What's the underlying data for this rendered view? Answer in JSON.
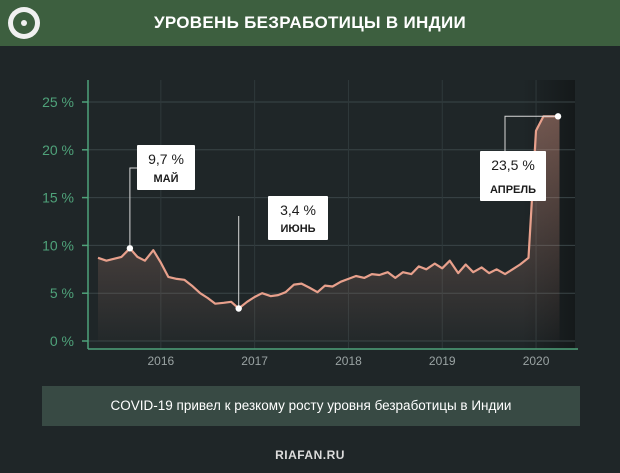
{
  "header": {
    "title": "УРОВЕНЬ БЕЗРАБОТИЦЫ В ИНДИИ"
  },
  "caption": "COVID-19 привел к резкому росту уровня безработицы в Индии",
  "footer": "RIAFAN.RU",
  "colors": {
    "header_bg": "#3d5f3f",
    "background": "#1f2628",
    "axis": "#4fa27a",
    "line": "#e8a08c",
    "caption_bg": "#384a44"
  },
  "chart_data": {
    "type": "line",
    "title": "УРОВЕНЬ БЕЗРАБОТИЦЫ В ИНДИИ",
    "ylim": [
      0,
      25
    ],
    "yticks": [
      {
        "value": 0,
        "label": "0 %"
      },
      {
        "value": 5,
        "label": "5 %"
      },
      {
        "value": 10,
        "label": "10 %"
      },
      {
        "value": 15,
        "label": "15 %"
      },
      {
        "value": 20,
        "label": "20 %"
      },
      {
        "value": 25,
        "label": "25 %"
      }
    ],
    "xlim": [
      2015.33,
      2020.33
    ],
    "xticks": [
      {
        "value": 2016,
        "label": "2016"
      },
      {
        "value": 2017,
        "label": "2017"
      },
      {
        "value": 2018,
        "label": "2018"
      },
      {
        "value": 2019,
        "label": "2019"
      },
      {
        "value": 2020,
        "label": "2020"
      }
    ],
    "grid": true,
    "series": [
      {
        "x": [
          2015.33,
          2015.42,
          2015.5,
          2015.58,
          2015.67,
          2015.75,
          2015.83,
          2015.92,
          2016.0,
          2016.08,
          2016.17,
          2016.25,
          2016.33,
          2016.42,
          2016.5,
          2016.58,
          2016.67,
          2016.75,
          2016.83,
          2016.92,
          2017.0,
          2017.08,
          2017.17,
          2017.25,
          2017.33,
          2017.42,
          2017.5,
          2017.58,
          2017.67,
          2017.75,
          2017.83,
          2017.92,
          2018.0,
          2018.08,
          2018.17,
          2018.25,
          2018.33,
          2018.42,
          2018.5,
          2018.58,
          2018.67,
          2018.75,
          2018.83,
          2018.92,
          2019.0,
          2019.08,
          2019.17,
          2019.25,
          2019.33,
          2019.42,
          2019.5,
          2019.58,
          2019.67,
          2019.75,
          2019.83,
          2019.92,
          2020.0,
          2020.08,
          2020.17,
          2020.25
        ],
        "values": [
          8.7,
          8.4,
          8.6,
          8.8,
          9.7,
          8.8,
          8.4,
          9.5,
          8.2,
          6.7,
          6.5,
          6.4,
          5.8,
          5.0,
          4.5,
          3.9,
          4.0,
          4.1,
          3.4,
          4.1,
          4.6,
          5.0,
          4.7,
          4.8,
          5.1,
          5.9,
          6.0,
          5.6,
          5.1,
          5.8,
          5.7,
          6.2,
          6.5,
          6.8,
          6.6,
          7.0,
          6.9,
          7.2,
          6.6,
          7.2,
          7.0,
          7.8,
          7.5,
          8.1,
          7.6,
          8.4,
          7.1,
          8.0,
          7.2,
          7.7,
          7.1,
          7.5,
          7.0,
          7.5,
          8.0,
          8.7,
          22.0,
          23.5,
          23.5,
          23.5
        ]
      }
    ],
    "annotations": [
      {
        "value": "9,7 %",
        "label": "МАЙ",
        "x": 2015.67,
        "y": 9.7
      },
      {
        "value": "3,4 %",
        "label": "ИЮНЬ",
        "x": 2016.83,
        "y": 3.4
      },
      {
        "value": "23,5 %",
        "label": "АПРЕЛЬ",
        "x": 2020.0,
        "y": 23.5
      }
    ]
  }
}
